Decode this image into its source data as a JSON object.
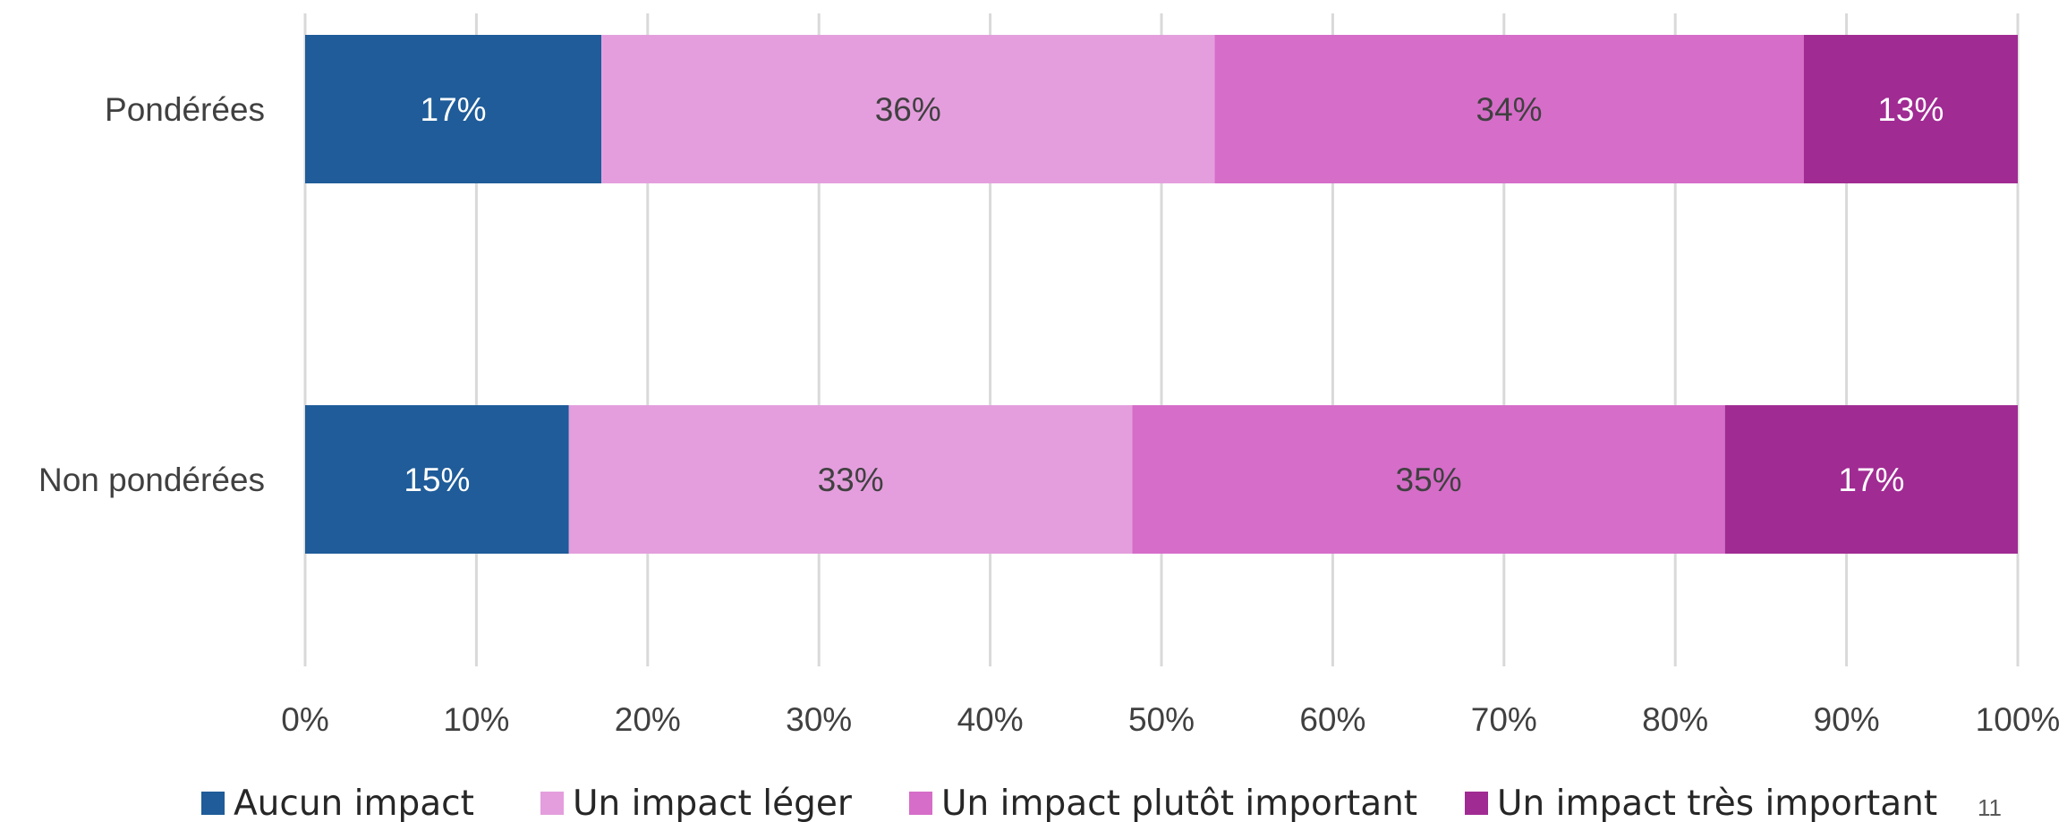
{
  "page_number": "11",
  "chart_data": {
    "type": "bar",
    "orientation": "horizontal",
    "stacked": true,
    "stack_mode": "percent",
    "categories": [
      "Pondérées",
      "Non pondérées"
    ],
    "series": [
      {
        "name": "Aucun impact",
        "values": [
          17.3,
          15.4
        ],
        "labels": [
          "17%",
          "15%"
        ],
        "color": "#1F5C99",
        "label_color": "#FFFFFF"
      },
      {
        "name": "Un impact léger",
        "values": [
          35.8,
          32.9
        ],
        "labels": [
          "36%",
          "33%"
        ],
        "color": "#E49EDD",
        "label_color": "#404040"
      },
      {
        "name": "Un impact plutôt important",
        "values": [
          34.4,
          34.6
        ],
        "labels": [
          "34%",
          "35%"
        ],
        "color": "#D66DC9",
        "label_color": "#404040"
      },
      {
        "name": "Un impact très important",
        "values": [
          12.5,
          17.1
        ],
        "labels": [
          "13%",
          "17%"
        ],
        "color": "#A02B93",
        "label_color": "#FFFFFF"
      }
    ],
    "xlim": [
      0,
      100
    ],
    "x_ticks": [
      0,
      10,
      20,
      30,
      40,
      50,
      60,
      70,
      80,
      90,
      100
    ],
    "x_tick_labels": [
      "0%",
      "10%",
      "20%",
      "30%",
      "40%",
      "50%",
      "60%",
      "70%",
      "80%",
      "90%",
      "100%"
    ],
    "grid": true,
    "grid_color": "#D9D9D9",
    "legend_position": "bottom",
    "title": "",
    "xlabel": "",
    "ylabel": ""
  }
}
